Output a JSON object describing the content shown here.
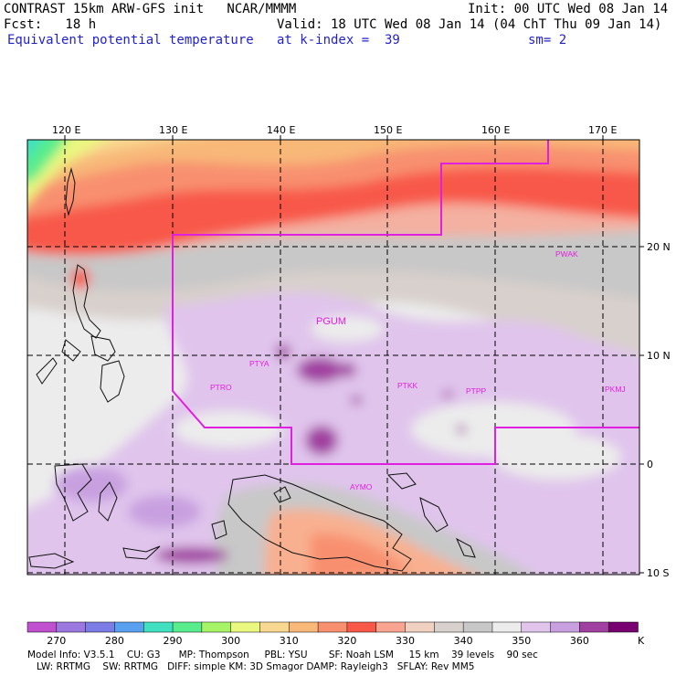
{
  "header": {
    "line1_left": "CONTRAST 15km ARW-GFS init   NCAR/MMMM",
    "line1_right": "Init: 00 UTC Wed 08 Jan 14",
    "line2_left": "Fcst:   18 h",
    "line2_right": "Valid: 18 UTC Wed 08 Jan 14 (04 ChT Thu 09 Jan 14)",
    "line3_left": "Equivalent potential temperature",
    "line3_mid": "at k-index =  39",
    "line3_right": "sm= 2"
  },
  "map": {
    "lon_labels": [
      "120 E",
      "130 E",
      "140 E",
      "150 E",
      "160 E",
      "170 E"
    ],
    "lat_labels": [
      "20 N",
      "10 N",
      "0",
      "10 S"
    ],
    "stations": [
      "PGUM",
      "PTYA",
      "PTRO",
      "PTKK",
      "PTPP",
      "PKMJ",
      "PWAK",
      "AYMO"
    ],
    "boundary_color": "#e020e0"
  },
  "legend": {
    "values": [
      "270",
      "280",
      "290",
      "300",
      "310",
      "320",
      "330",
      "340",
      "350",
      "360"
    ],
    "unit": "K",
    "colors": [
      "#c050d0",
      "#9a78e0",
      "#7c7ce6",
      "#5aa0f0",
      "#40e0c0",
      "#58ec8c",
      "#a8f468",
      "#eaf880",
      "#f8d890",
      "#f8b878",
      "#f89070",
      "#f85848",
      "#f8a490",
      "#f0d0c0",
      "#d8d0cc",
      "#c8c8c8",
      "#ececec",
      "#e0c4ec",
      "#c8a0e0",
      "#a040a0",
      "#780070"
    ]
  },
  "footer": {
    "line1": "Model Info: V3.5.1    CU: G3      MP: Thompson     PBL: YSU       SF: Noah LSM     15 km    39 levels    90 sec",
    "line2": "   LW: RRTMG    SW: RRTMG   DIFF: simple KM: 3D Smagor DAMP: Rayleigh3   SFLAY: Rev MM5"
  }
}
